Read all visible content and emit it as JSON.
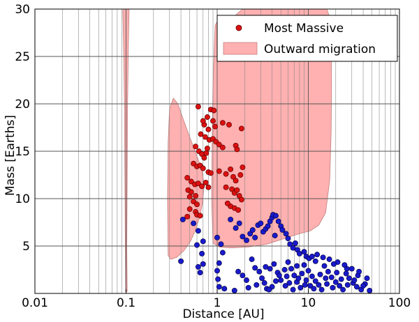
{
  "chart_data": {
    "type": "scatter",
    "title": "",
    "xlabel": "Distance [AU]",
    "ylabel": "Mass [Earths]",
    "xscale": "log",
    "xlim": [
      0.01,
      100
    ],
    "ylim": [
      0,
      30
    ],
    "grid": true,
    "legend_position": "top-right",
    "x_ticks": [
      {
        "value": 0.01,
        "label": "0.01"
      },
      {
        "value": 0.1,
        "label": "0.1"
      },
      {
        "value": 1,
        "label": "1"
      },
      {
        "value": 10,
        "label": "10"
      },
      {
        "value": 100,
        "label": "100"
      }
    ],
    "y_ticks": [
      {
        "value": 5,
        "label": "5"
      },
      {
        "value": 10,
        "label": "10"
      },
      {
        "value": 15,
        "label": "15"
      },
      {
        "value": 20,
        "label": "20"
      },
      {
        "value": 25,
        "label": "25"
      },
      {
        "value": 30,
        "label": "30"
      }
    ],
    "colors": {
      "most_massive": "#dd1111",
      "others": "#1a1acc",
      "migration_fill": "#ffb0b0",
      "migration_edge": "#c08080"
    },
    "series": [
      {
        "name": "Most Massive",
        "kind": "points",
        "color": "#dd1111",
        "points": [
          [
            0.62,
            19.7
          ],
          [
            0.78,
            18.6
          ],
          [
            0.85,
            19.4
          ],
          [
            0.92,
            19.3
          ],
          [
            0.9,
            18.2
          ],
          [
            0.95,
            17.6
          ],
          [
            0.8,
            17.3
          ],
          [
            0.72,
            17.8
          ],
          [
            0.7,
            18.2
          ],
          [
            1.15,
            18.0
          ],
          [
            1.35,
            17.8
          ],
          [
            1.85,
            17.4
          ],
          [
            0.66,
            16.8
          ],
          [
            0.74,
            16.5
          ],
          [
            0.82,
            16.2
          ],
          [
            0.9,
            16.3
          ],
          [
            0.97,
            16.0
          ],
          [
            1.05,
            15.7
          ],
          [
            1.15,
            15.4
          ],
          [
            1.6,
            15.6
          ],
          [
            1.65,
            15.2
          ],
          [
            0.58,
            15.5
          ],
          [
            0.63,
            15.0
          ],
          [
            0.68,
            14.7
          ],
          [
            0.72,
            14.3
          ],
          [
            0.76,
            14.8
          ],
          [
            0.78,
            15.3
          ],
          [
            0.55,
            13.7
          ],
          [
            0.6,
            13.4
          ],
          [
            0.65,
            13.5
          ],
          [
            0.7,
            13.2
          ],
          [
            0.8,
            12.8
          ],
          [
            0.85,
            12.7
          ],
          [
            1.05,
            12.9
          ],
          [
            1.25,
            12.6
          ],
          [
            1.4,
            13.1
          ],
          [
            1.5,
            12.3
          ],
          [
            1.6,
            11.9
          ],
          [
            1.8,
            12.5
          ],
          [
            1.9,
            13.3
          ],
          [
            0.47,
            12.2
          ],
          [
            0.52,
            11.8
          ],
          [
            0.57,
            11.5
          ],
          [
            0.62,
            11.6
          ],
          [
            0.68,
            11.3
          ],
          [
            0.75,
            11.7
          ],
          [
            0.8,
            11.2
          ],
          [
            0.48,
            10.9
          ],
          [
            0.52,
            10.7
          ],
          [
            0.58,
            10.3
          ],
          [
            1.25,
            11.2
          ],
          [
            1.45,
            11.0
          ],
          [
            1.55,
            10.6
          ],
          [
            1.65,
            10.9
          ],
          [
            1.75,
            10.3
          ],
          [
            1.85,
            9.9
          ],
          [
            0.5,
            10.2
          ],
          [
            0.55,
            9.7
          ],
          [
            0.6,
            9.4
          ],
          [
            1.4,
            9.2
          ],
          [
            1.55,
            9.0
          ],
          [
            1.7,
            8.8
          ],
          [
            0.5,
            8.9
          ],
          [
            0.58,
            8.6
          ],
          [
            0.6,
            8.3
          ],
          [
            0.65,
            8.2
          ],
          [
            0.47,
            8.1
          ],
          [
            1.3,
            9.5
          ]
        ]
      },
      {
        "name": "",
        "kind": "points",
        "color": "#1a1acc",
        "points": [
          [
            0.4,
            3.4
          ],
          [
            0.42,
            7.8
          ],
          [
            0.55,
            7.4
          ],
          [
            0.62,
            6.6
          ],
          [
            0.6,
            5.1
          ],
          [
            0.7,
            5.5
          ],
          [
            0.68,
            4.2
          ],
          [
            0.7,
            3.1
          ],
          [
            0.62,
            2.8
          ],
          [
            0.65,
            2.2
          ],
          [
            1.0,
            5.9
          ],
          [
            1.1,
            5.2
          ],
          [
            1.15,
            4.3
          ],
          [
            1.05,
            3.2
          ],
          [
            1.0,
            2.4
          ],
          [
            1.02,
            1.5
          ],
          [
            1.05,
            0.7
          ],
          [
            1.4,
            7.8
          ],
          [
            1.6,
            6.9
          ],
          [
            1.75,
            7.4
          ],
          [
            1.9,
            6.0
          ],
          [
            2.1,
            5.6
          ],
          [
            2.3,
            6.3
          ],
          [
            2.45,
            6.7
          ],
          [
            2.6,
            5.9
          ],
          [
            2.8,
            7.2
          ],
          [
            3.0,
            7.4
          ],
          [
            3.2,
            6.5
          ],
          [
            3.4,
            6.8
          ],
          [
            3.6,
            7.1
          ],
          [
            3.8,
            7.6
          ],
          [
            4.0,
            8.0
          ],
          [
            4.1,
            8.3
          ],
          [
            4.4,
            8.2
          ],
          [
            4.7,
            7.6
          ],
          [
            5.0,
            7.1
          ],
          [
            5.2,
            6.7
          ],
          [
            4.3,
            6.1
          ],
          [
            5.7,
            6.3
          ],
          [
            6.0,
            5.8
          ],
          [
            6.3,
            5.2
          ],
          [
            6.8,
            4.8
          ],
          [
            7.2,
            5.3
          ],
          [
            7.6,
            4.6
          ],
          [
            8.0,
            4.2
          ],
          [
            9.0,
            4.4
          ],
          [
            9.5,
            3.9
          ],
          [
            10.2,
            3.7
          ],
          [
            11.0,
            3.9
          ],
          [
            12.0,
            3.4
          ],
          [
            1.7,
            2.3
          ],
          [
            1.9,
            1.9
          ],
          [
            2.1,
            1.4
          ],
          [
            2.4,
            3.6
          ],
          [
            2.6,
            2.7
          ],
          [
            2.9,
            2.3
          ],
          [
            1.2,
            0.5
          ],
          [
            1.55,
            0.3
          ],
          [
            3.1,
            1.6
          ],
          [
            3.3,
            1.1
          ],
          [
            3.5,
            0.5
          ],
          [
            3.8,
            2.6
          ],
          [
            4.2,
            3.1
          ],
          [
            4.6,
            2.2
          ],
          [
            5.0,
            1.4
          ],
          [
            5.6,
            0.8
          ],
          [
            6.0,
            3.3
          ],
          [
            6.5,
            2.6
          ],
          [
            7.0,
            1.9
          ],
          [
            7.5,
            1.2
          ],
          [
            8.2,
            0.6
          ],
          [
            9.0,
            3.0
          ],
          [
            10.0,
            2.4
          ],
          [
            11.0,
            1.8
          ],
          [
            12.0,
            1.3
          ],
          [
            13.0,
            0.9
          ],
          [
            14.0,
            0.4
          ],
          [
            15.0,
            2.9
          ],
          [
            16.5,
            2.3
          ],
          [
            18.0,
            1.7
          ],
          [
            20.0,
            1.2
          ],
          [
            22.0,
            0.8
          ],
          [
            24.0,
            0.4
          ],
          [
            26.0,
            2.1
          ],
          [
            28.0,
            1.6
          ],
          [
            31.0,
            1.1
          ],
          [
            34.0,
            0.7
          ],
          [
            38.0,
            0.4
          ],
          [
            42.0,
            1.0
          ],
          [
            47.0,
            0.3
          ],
          [
            35.0,
            1.9
          ],
          [
            30.0,
            2.6
          ],
          [
            25.0,
            3.0
          ],
          [
            21.0,
            3.3
          ],
          [
            17.0,
            3.6
          ],
          [
            14.5,
            3.8
          ],
          [
            12.5,
            4.1
          ],
          [
            7.5,
            2.9
          ],
          [
            8.5,
            2.1
          ],
          [
            9.5,
            1.4
          ],
          [
            10.5,
            0.8
          ],
          [
            11.5,
            0.5
          ],
          [
            5.5,
            2.5
          ],
          [
            4.8,
            1.9
          ],
          [
            4.4,
            1.3
          ],
          [
            4.0,
            0.7
          ],
          [
            3.7,
            0.4
          ],
          [
            6.2,
            1.1
          ],
          [
            6.8,
            0.4
          ],
          [
            16.0,
            1.0
          ],
          [
            18.5,
            0.6
          ],
          [
            20.5,
            2.2
          ],
          [
            23.0,
            1.5
          ],
          [
            27.0,
            0.9
          ],
          [
            32.0,
            1.4
          ],
          [
            36.0,
            2.3
          ],
          [
            40.0,
            0.8
          ],
          [
            44.0,
            1.6
          ],
          [
            2.2,
            0.6
          ],
          [
            2.7,
            0.9
          ],
          [
            19.0,
            3.1
          ],
          [
            26.5,
            2.6
          ],
          [
            13.5,
            2.0
          ],
          [
            15.5,
            1.6
          ],
          [
            9.2,
            0.9
          ],
          [
            7.8,
            1.6
          ],
          [
            5.8,
            1.8
          ],
          [
            3.4,
            2.8
          ]
        ]
      },
      {
        "name": "Outward migration",
        "kind": "region",
        "color": "#ffb0b0"
      }
    ],
    "regions": [
      {
        "name": "narrow-band",
        "outline": [
          [
            0.092,
            30.0
          ],
          [
            0.108,
            30.0
          ],
          [
            0.106,
            26.0
          ],
          [
            0.104,
            20.0
          ],
          [
            0.103,
            12.0
          ],
          [
            0.102,
            5.0
          ],
          [
            0.103,
            0.2
          ],
          [
            0.099,
            0.2
          ],
          [
            0.098,
            5.0
          ],
          [
            0.097,
            12.0
          ],
          [
            0.096,
            20.0
          ],
          [
            0.094,
            26.0
          ]
        ]
      },
      {
        "name": "left-lobe",
        "outline": [
          [
            0.29,
            4.0
          ],
          [
            0.285,
            10.0
          ],
          [
            0.29,
            16.0
          ],
          [
            0.3,
            19.5
          ],
          [
            0.33,
            20.6
          ],
          [
            0.37,
            20.0
          ],
          [
            0.42,
            18.5
          ],
          [
            0.5,
            16.5
          ],
          [
            0.6,
            14.5
          ],
          [
            0.68,
            13.0
          ],
          [
            0.72,
            11.5
          ],
          [
            0.69,
            9.5
          ],
          [
            0.64,
            8.0
          ],
          [
            0.58,
            6.7
          ],
          [
            0.51,
            5.5
          ],
          [
            0.43,
            4.5
          ],
          [
            0.36,
            3.8
          ],
          [
            0.31,
            3.6
          ]
        ]
      },
      {
        "name": "main-region",
        "outline": [
          [
            0.9,
            5.3
          ],
          [
            0.87,
            10.0
          ],
          [
            0.88,
            16.0
          ],
          [
            0.9,
            22.0
          ],
          [
            0.93,
            26.0
          ],
          [
            0.95,
            28.3
          ],
          [
            1.02,
            28.8
          ],
          [
            1.22,
            28.9
          ],
          [
            1.45,
            29.0
          ],
          [
            1.7,
            29.6
          ],
          [
            1.9,
            30.0
          ],
          [
            16.0,
            30.0
          ],
          [
            17.3,
            29.0
          ],
          [
            17.8,
            27.0
          ],
          [
            18.0,
            22.0
          ],
          [
            17.8,
            17.0
          ],
          [
            17.2,
            12.0
          ],
          [
            15.5,
            8.5
          ],
          [
            13.0,
            7.2
          ],
          [
            10.5,
            6.6
          ],
          [
            8.0,
            6.3
          ],
          [
            5.5,
            5.8
          ],
          [
            3.5,
            5.2
          ],
          [
            2.2,
            4.9
          ],
          [
            1.4,
            4.8
          ],
          [
            1.05,
            4.9
          ]
        ]
      }
    ]
  }
}
